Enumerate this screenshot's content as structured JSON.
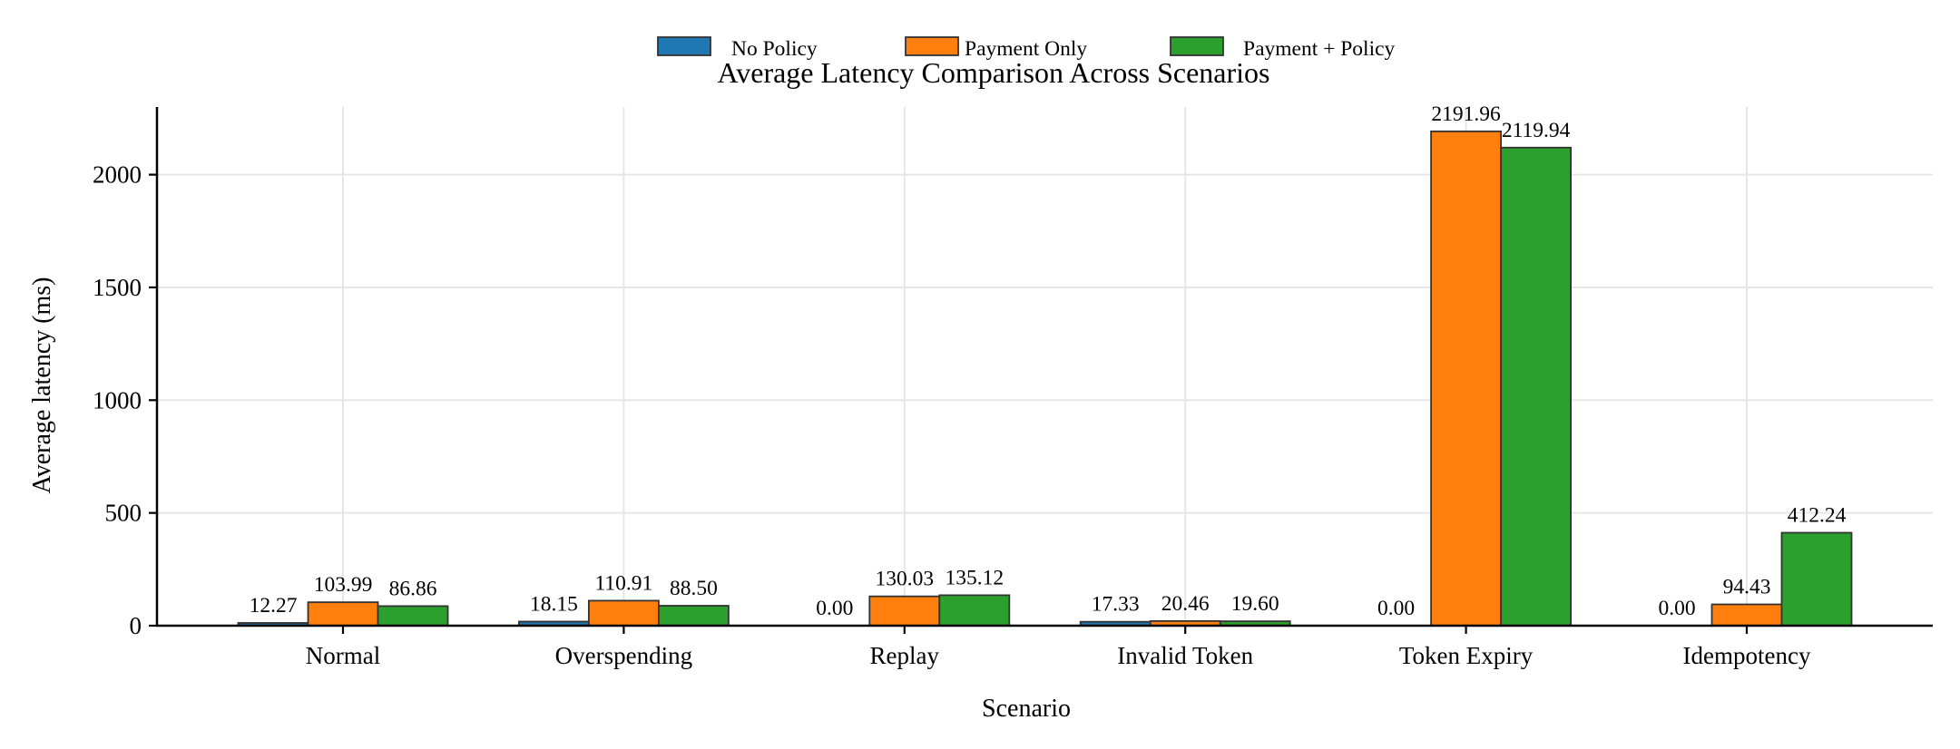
{
  "chart_data": {
    "type": "bar",
    "title": "Average Latency Comparison Across Scenarios",
    "xlabel": "Scenario",
    "ylabel": "Average latency (ms)",
    "categories": [
      "Normal",
      "Overspending",
      "Replay",
      "Invalid Token",
      "Token Expiry",
      "Idempotency"
    ],
    "series": [
      {
        "name": "No Policy",
        "color": "#1f77b4",
        "values": [
          12.27,
          18.15,
          0.0,
          17.33,
          0.0,
          0.0
        ],
        "labels": [
          "12.27",
          "18.15",
          "0.00",
          "17.33",
          "0.00",
          "0.00"
        ]
      },
      {
        "name": "Payment Only",
        "color": "#ff7f0e",
        "values": [
          103.99,
          110.91,
          130.03,
          20.46,
          2191.96,
          94.43
        ],
        "labels": [
          "103.99",
          "110.91",
          "130.03",
          "20.46",
          "2191.96",
          "94.43"
        ]
      },
      {
        "name": "Payment + Policy",
        "color": "#2ca02c",
        "values": [
          86.86,
          88.5,
          135.12,
          19.6,
          2119.94,
          412.24
        ],
        "labels": [
          "86.86",
          "88.50",
          "135.12",
          "19.60",
          "2119.94",
          "412.24"
        ]
      }
    ],
    "ylim": [
      0,
      2300
    ],
    "yticks": [
      0,
      500,
      1000,
      1500,
      2000
    ],
    "ytick_labels": [
      "0",
      "500",
      "1000",
      "1500",
      "2000"
    ],
    "grid": true,
    "legend_position": "top-center"
  }
}
